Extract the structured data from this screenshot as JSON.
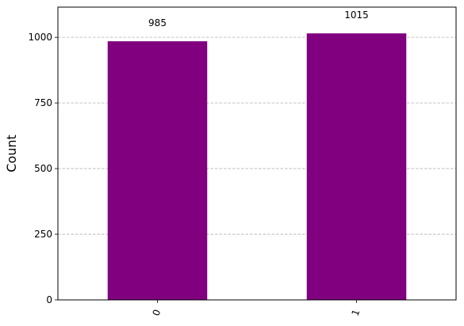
{
  "chart_data": {
    "type": "bar",
    "categories": [
      "0",
      "1"
    ],
    "values": [
      985,
      1015
    ],
    "data_labels": [
      "985",
      "1015"
    ],
    "title": "",
    "xlabel": "",
    "ylabel": "Count",
    "ylim": [
      0,
      1115
    ],
    "yticks": [
      0,
      250,
      500,
      750,
      1000
    ],
    "ytick_labels": [
      "0",
      "250",
      "500",
      "750",
      "1000"
    ],
    "grid": "horizontal dashed",
    "bar_color": "#800080",
    "grid_color": "#b0b0b0",
    "xtick_rotation": 70
  }
}
